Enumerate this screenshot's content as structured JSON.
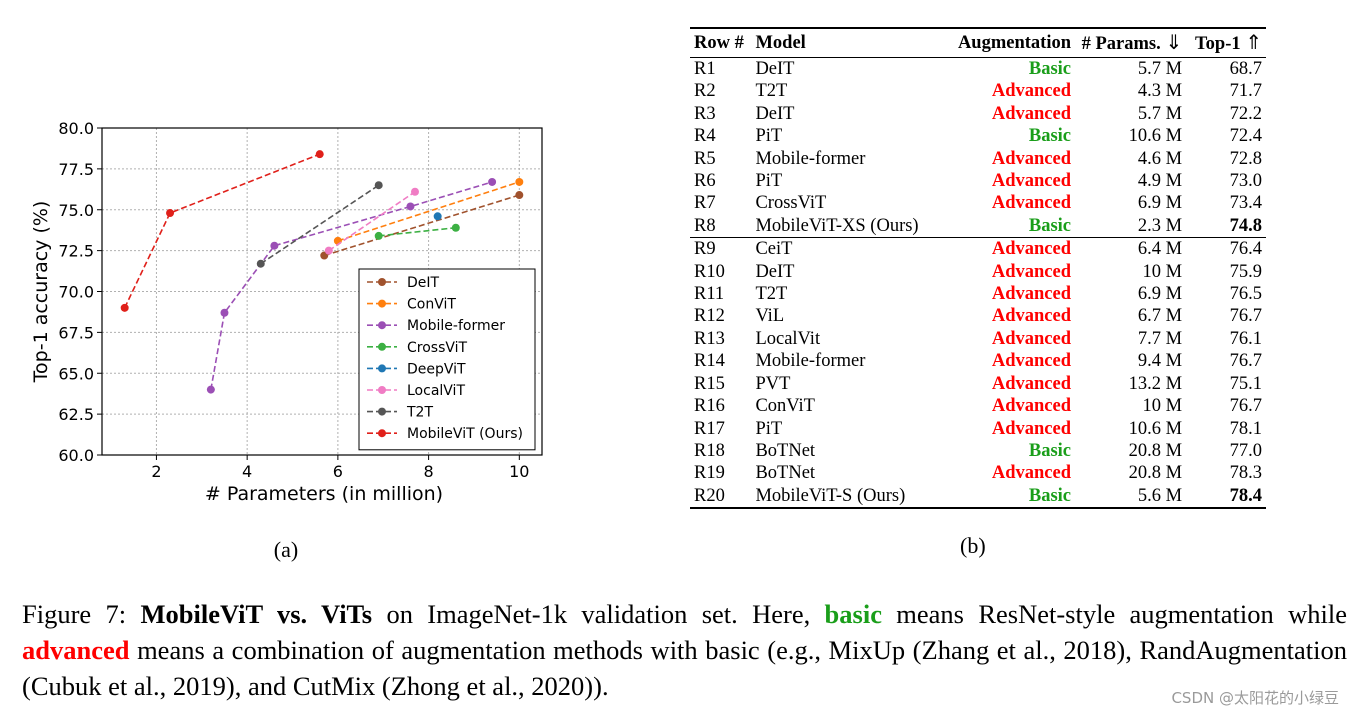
{
  "colors": {
    "basic": "#1a9e1a",
    "advanced": "#ff0000"
  },
  "chart_data": {
    "type": "line",
    "panel_label": "(a)",
    "xlabel": "# Parameters (in million)",
    "ylabel": "Top-1 accuracy (%)",
    "xlim": [
      0.8,
      10.5
    ],
    "ylim": [
      60.0,
      80.0
    ],
    "xticks": [
      "2",
      "4",
      "6",
      "8",
      "10"
    ],
    "xtick_values": [
      2,
      4,
      6,
      8,
      10
    ],
    "yticks": [
      "60.0",
      "62.5",
      "65.0",
      "67.5",
      "70.0",
      "72.5",
      "75.0",
      "77.5",
      "80.0"
    ],
    "ytick_values": [
      60.0,
      62.5,
      65.0,
      67.5,
      70.0,
      72.5,
      75.0,
      77.5,
      80.0
    ],
    "grid": true,
    "legend_position": "lower-right",
    "series": [
      {
        "name": "DeIT",
        "color": "#a0522d",
        "x": [
          5.7,
          10
        ],
        "y": [
          72.2,
          75.9
        ]
      },
      {
        "name": "ConViT",
        "color": "#ff7f0e",
        "x": [
          6.0,
          10
        ],
        "y": [
          73.1,
          76.7
        ]
      },
      {
        "name": "Mobile-former",
        "color": "#9b4fb5",
        "x": [
          3.2,
          3.5,
          4.6,
          7.6,
          9.4
        ],
        "y": [
          64.0,
          68.7,
          72.8,
          75.2,
          76.7
        ]
      },
      {
        "name": "CrossViT",
        "color": "#3cb043",
        "x": [
          6.9,
          8.6
        ],
        "y": [
          73.4,
          73.9
        ]
      },
      {
        "name": "DeepViT",
        "color": "#1f77b4",
        "x": [
          8.2
        ],
        "y": [
          74.6
        ]
      },
      {
        "name": "LocalViT",
        "color": "#f07cc4",
        "x": [
          5.8,
          7.7
        ],
        "y": [
          72.5,
          76.1
        ]
      },
      {
        "name": "T2T",
        "color": "#555555",
        "x": [
          4.3,
          6.9
        ],
        "y": [
          71.7,
          76.5
        ]
      },
      {
        "name": "MobileViT (Ours)",
        "color": "#e0201a",
        "x": [
          1.3,
          2.3,
          5.6
        ],
        "y": [
          69.0,
          74.8,
          78.4
        ]
      }
    ]
  },
  "table": {
    "panel_label": "(b)",
    "headers": {
      "row": "Row #",
      "model": "Model",
      "augmentation": "Augmentation",
      "params": "# Params.",
      "params_arrow": "⇓",
      "top1": "Top-1",
      "top1_arrow": "⇑"
    },
    "group1": [
      {
        "row": "R1",
        "model": "DeIT",
        "aug": "Basic",
        "params": "5.7 M",
        "top1": "68.7",
        "bold": false
      },
      {
        "row": "R2",
        "model": "T2T",
        "aug": "Advanced",
        "params": "4.3 M",
        "top1": "71.7",
        "bold": false
      },
      {
        "row": "R3",
        "model": "DeIT",
        "aug": "Advanced",
        "params": "5.7 M",
        "top1": "72.2",
        "bold": false
      },
      {
        "row": "R4",
        "model": "PiT",
        "aug": "Basic",
        "params": "10.6 M",
        "top1": "72.4",
        "bold": false
      },
      {
        "row": "R5",
        "model": "Mobile-former",
        "aug": "Advanced",
        "params": "4.6 M",
        "top1": "72.8",
        "bold": false
      },
      {
        "row": "R6",
        "model": "PiT",
        "aug": "Advanced",
        "params": "4.9 M",
        "top1": "73.0",
        "bold": false
      },
      {
        "row": "R7",
        "model": "CrossViT",
        "aug": "Advanced",
        "params": "6.9 M",
        "top1": "73.4",
        "bold": false
      },
      {
        "row": "R8",
        "model": "MobileViT-XS (Ours)",
        "aug": "Basic",
        "params": "2.3 M",
        "top1": "74.8",
        "bold": true
      }
    ],
    "group2": [
      {
        "row": "R9",
        "model": "CeiT",
        "aug": "Advanced",
        "params": "6.4 M",
        "top1": "76.4",
        "bold": false
      },
      {
        "row": "R10",
        "model": "DeIT",
        "aug": "Advanced",
        "params": "10 M",
        "top1": "75.9",
        "bold": false
      },
      {
        "row": "R11",
        "model": "T2T",
        "aug": "Advanced",
        "params": "6.9 M",
        "top1": "76.5",
        "bold": false
      },
      {
        "row": "R12",
        "model": "ViL",
        "aug": "Advanced",
        "params": "6.7 M",
        "top1": "76.7",
        "bold": false
      },
      {
        "row": "R13",
        "model": "LocalVit",
        "aug": "Advanced",
        "params": "7.7 M",
        "top1": "76.1",
        "bold": false
      },
      {
        "row": "R14",
        "model": "Mobile-former",
        "aug": "Advanced",
        "params": "9.4 M",
        "top1": "76.7",
        "bold": false
      },
      {
        "row": "R15",
        "model": "PVT",
        "aug": "Advanced",
        "params": "13.2 M",
        "top1": "75.1",
        "bold": false
      },
      {
        "row": "R16",
        "model": "ConViT",
        "aug": "Advanced",
        "params": "10 M",
        "top1": "76.7",
        "bold": false
      },
      {
        "row": "R17",
        "model": "PiT",
        "aug": "Advanced",
        "params": "10.6 M",
        "top1": "78.1",
        "bold": false
      },
      {
        "row": "R18",
        "model": "BoTNet",
        "aug": "Basic",
        "params": "20.8 M",
        "top1": "77.0",
        "bold": false
      },
      {
        "row": "R19",
        "model": "BoTNet",
        "aug": "Advanced",
        "params": "20.8 M",
        "top1": "78.3",
        "bold": false
      },
      {
        "row": "R20",
        "model": "MobileViT-S (Ours)",
        "aug": "Basic",
        "params": "5.6 M",
        "top1": "78.4",
        "bold": true
      }
    ]
  },
  "caption": {
    "prefix": "Figure 7: ",
    "title_bold": "MobileViT vs. ViTs",
    "part1": " on ImageNet-1k validation set. Here, ",
    "basic_word": "basic",
    "part2": " means ResNet-style augmentation while ",
    "advanced_word": "advanced",
    "part3": " means a combination of augmentation methods with basic (e.g., MixUp (Zhang et al., 2018), RandAugmentation (Cubuk et al., 2019), and CutMix (Zhong et al., 2020))."
  },
  "watermark": "CSDN @太阳花的小绿豆"
}
